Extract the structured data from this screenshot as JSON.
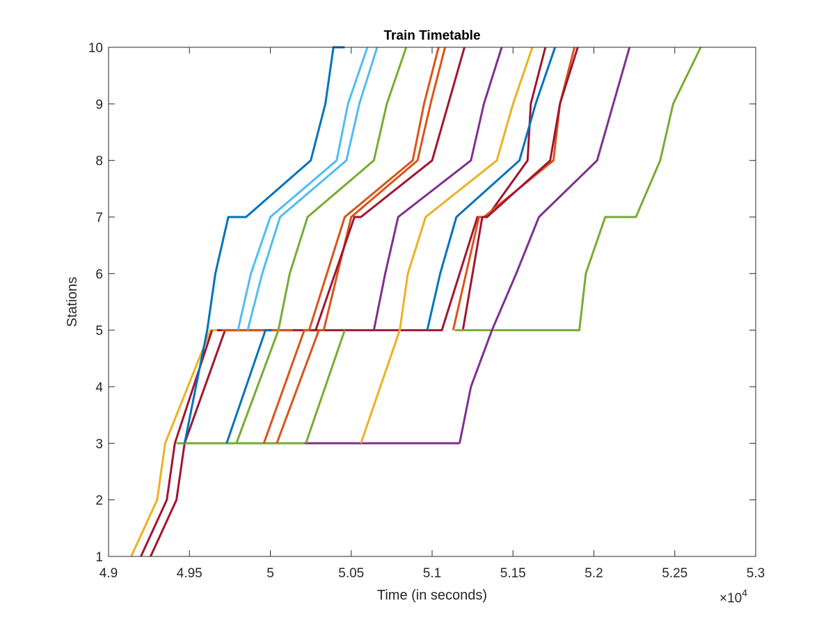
{
  "chart_data": {
    "type": "line",
    "title": "Train Timetable",
    "xlabel": "Time (in seconds)",
    "ylabel": "Stations",
    "x_exponent_label": {
      "base": "×10",
      "exp": "4"
    },
    "xlim": [
      49000,
      53000
    ],
    "ylim": [
      1,
      10
    ],
    "x_ticks": [
      49000,
      49500,
      50000,
      50500,
      51000,
      51500,
      52000,
      52500,
      53000
    ],
    "x_tick_labels": [
      "4.9",
      "4.95",
      "5",
      "5.05",
      "5.1",
      "5.15",
      "5.2",
      "5.25",
      "5.3"
    ],
    "y_ticks": [
      1,
      2,
      3,
      4,
      5,
      6,
      7,
      8,
      9,
      10
    ],
    "y_tick_labels": [
      "1",
      "2",
      "3",
      "4",
      "5",
      "6",
      "7",
      "8",
      "9",
      "10"
    ],
    "grid": false,
    "box": true,
    "series": [
      {
        "color": "#EDB120",
        "x": [
          49140,
          49300,
          49350,
          49630,
          49670
        ],
        "y": [
          1,
          2,
          3,
          5,
          5
        ]
      },
      {
        "color": "#A2142F",
        "x": [
          49200,
          49360,
          49410,
          49640
        ],
        "y": [
          1,
          2,
          3,
          5
        ]
      },
      {
        "color": "#A2142F",
        "x": [
          49260,
          49420,
          49470,
          49720
        ],
        "y": [
          1,
          2,
          3,
          5
        ]
      },
      {
        "color": "#77AC30",
        "x": [
          49420,
          49470,
          49780,
          50030,
          50210
        ],
        "y": [
          3,
          3,
          3,
          3,
          3
        ]
      },
      {
        "color": "#7E2F8E",
        "x": [
          50210,
          51170
        ],
        "y": [
          3,
          3
        ]
      },
      {
        "color": "#0072BD",
        "x": [
          49470,
          49610,
          49660,
          49740,
          49850,
          50250,
          50340,
          50390,
          50460
        ],
        "y": [
          3,
          5,
          6,
          7,
          7,
          8,
          9,
          10,
          10
        ]
      },
      {
        "color": "#A2142F",
        "x": [
          49670,
          50380,
          51060,
          51280,
          51310,
          51340,
          51590,
          51610,
          51700
        ],
        "y": [
          5,
          5,
          5,
          7,
          7,
          7,
          8,
          9,
          10
        ]
      },
      {
        "color": "#D95319",
        "x": [
          49700,
          50140
        ],
        "y": [
          5,
          5
        ]
      },
      {
        "color": "#4DBEEE",
        "x": [
          49800,
          49880,
          50000,
          50410,
          50480,
          50600
        ],
        "y": [
          5,
          6,
          7,
          8,
          9,
          10
        ]
      },
      {
        "color": "#4DBEEE",
        "x": [
          49860,
          49950,
          50060,
          50470,
          50550,
          50660
        ],
        "y": [
          5,
          6,
          7,
          8,
          9,
          10
        ]
      },
      {
        "color": "#0072BD",
        "x": [
          49730,
          49970,
          50010
        ],
        "y": [
          3,
          5,
          5
        ]
      },
      {
        "color": "#77AC30",
        "x": [
          49790,
          50050,
          50120,
          50230,
          50640,
          50720,
          50840
        ],
        "y": [
          3,
          5,
          6,
          7,
          8,
          9,
          10
        ]
      },
      {
        "color": "#D95319",
        "x": [
          49960,
          50210,
          50240,
          50460,
          50880,
          50950,
          51040
        ],
        "y": [
          3,
          5,
          5,
          7,
          8,
          9,
          10
        ]
      },
      {
        "color": "#D95319",
        "x": [
          50040,
          50300,
          50330,
          50500,
          50910,
          50990,
          51080
        ],
        "y": [
          3,
          5,
          5,
          7,
          8,
          9,
          10
        ]
      },
      {
        "color": "#A2142F",
        "x": [
          50260,
          50280,
          50280,
          50520,
          50560,
          51000,
          51100,
          51200
        ],
        "y": [
          5,
          5,
          5,
          7,
          7,
          8,
          9,
          10
        ]
      },
      {
        "color": "#77AC30",
        "x": [
          50220,
          50460
        ],
        "y": [
          3,
          5
        ]
      },
      {
        "color": "#7E2F8E",
        "x": [
          50640,
          50710,
          50790,
          51240,
          51320,
          51430
        ],
        "y": [
          5,
          6,
          7,
          8,
          9,
          10
        ]
      },
      {
        "color": "#EDB120",
        "x": [
          50560,
          50800,
          50850,
          50960,
          51400,
          51500,
          51620
        ],
        "y": [
          3,
          5,
          6,
          7,
          8,
          9,
          10
        ]
      },
      {
        "color": "#0072BD",
        "x": [
          50970,
          51050,
          51150,
          51540,
          51640,
          51760
        ],
        "y": [
          5,
          6,
          7,
          8,
          9,
          10
        ]
      },
      {
        "color": "#D95319",
        "x": [
          51130,
          51210,
          51290,
          51320,
          51750,
          51790,
          51880
        ],
        "y": [
          5,
          6,
          7,
          7,
          8,
          9,
          10
        ]
      },
      {
        "color": "#A2142F",
        "x": [
          51190,
          51310,
          51340,
          51730,
          51790,
          51900
        ],
        "y": [
          5,
          7,
          7,
          8,
          9,
          10
        ]
      },
      {
        "color": "#77AC30",
        "x": [
          51140,
          51910,
          51950,
          52070,
          52200,
          52260,
          52410,
          52490,
          52660
        ],
        "y": [
          5,
          5,
          6,
          7,
          7,
          7,
          8,
          9,
          10
        ]
      },
      {
        "color": "#7E2F8E",
        "x": [
          51170,
          51240,
          51370,
          51520,
          51660,
          52020,
          52120,
          52220
        ],
        "y": [
          3,
          4,
          5,
          6,
          7,
          8,
          9,
          10
        ]
      }
    ]
  }
}
